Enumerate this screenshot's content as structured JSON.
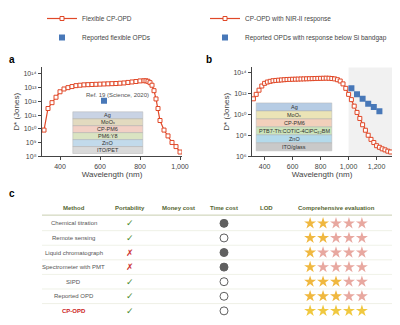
{
  "chart_data": [
    {
      "type": "line",
      "title": "a",
      "x_label": "Wavelength (nm)",
      "y_label": "D* (Jones)",
      "log": "y",
      "xlim": [
        310,
        1010
      ],
      "xticks": [
        400,
        600,
        800,
        {
          "value": 1000,
          "label": "1,000"
        }
      ],
      "ylim": [
        100000000.0,
        300000000000000.0
      ],
      "yticks": [
        {
          "value": 100000000.0,
          "label": "10⁸"
        },
        {
          "value": 1000000000.0,
          "label": "10⁹"
        },
        {
          "value": 10000000000.0,
          "label": "10¹⁰"
        },
        {
          "value": 100000000000.0,
          "label": "10¹¹"
        },
        {
          "value": 1000000000000.0,
          "label": "10¹²"
        },
        {
          "value": 10000000000000.0,
          "label": "10¹³"
        },
        {
          "value": 100000000000000.0,
          "label": "10¹⁴"
        }
      ],
      "grid": false,
      "legend": "upper left",
      "series": [
        {
          "name": "Flexible CP-OPD",
          "type": "line",
          "marker": "square",
          "color": "#e04828",
          "x": [
            320,
            340,
            360,
            380,
            400,
            420,
            440,
            460,
            480,
            500,
            520,
            540,
            560,
            580,
            600,
            620,
            640,
            660,
            680,
            700,
            720,
            740,
            760,
            780,
            800,
            820,
            830,
            840,
            850,
            860,
            870,
            880,
            890,
            900,
            920,
            940,
            960,
            980,
            1000
          ],
          "values": [
            8000000000.0,
            300000000000.0,
            800000000000.0,
            2000000000000.0,
            5000000000000.0,
            8000000000000.0,
            10000000000000.0,
            12000000000000.0,
            14000000000000.0,
            15000000000000.0,
            16000000000000.0,
            16500000000000.0,
            17000000000000.0,
            17500000000000.0,
            18000000000000.0,
            18500000000000.0,
            19000000000000.0,
            19500000000000.0,
            20000000000000.0,
            21000000000000.0,
            22000000000000.0,
            24000000000000.0,
            26000000000000.0,
            28000000000000.0,
            31000000000000.0,
            32000000000000.0,
            31500000000000.0,
            29000000000000.0,
            23000000000000.0,
            15000000000000.0,
            6000000000000.0,
            1500000000000.0,
            300000000000.0,
            40000000000.0,
            8000000000.0,
            3000000000.0,
            1000000000.0,
            500000000.0,
            200000000.0
          ]
        },
        {
          "name": "Reported flexible OPDs",
          "type": "scatter",
          "marker": "square",
          "color": "#4878b8",
          "x": [
            620
          ],
          "values": [
            1100000000000.0
          ]
        }
      ],
      "annotations": [
        {
          "text": "Ref. 19 (Science, 2020)",
          "x": 520,
          "y": 1300000000000.0
        }
      ],
      "layers": [
        {
          "text": "Ag",
          "color": "#c0cce0"
        },
        {
          "text": "MoOₓ",
          "color": "#ddd4b4"
        },
        {
          "text": "CP-PM6",
          "color": "#f0c8bc"
        },
        {
          "text": "PM6:Y8",
          "color": "#d4e0b8"
        },
        {
          "text": "ZnO",
          "color": "#b8d4e8"
        },
        {
          "text": "ITO/PET",
          "color": "#d4d4d4"
        }
      ]
    },
    {
      "type": "line",
      "title": "b",
      "x_label": "Wavelength (nm)",
      "y_label": "D* (Jones)",
      "log": "y",
      "xlim": [
        310,
        1310
      ],
      "xticks": [
        400,
        600,
        800,
        {
          "value": 1000,
          "label": "1,000"
        },
        {
          "value": 1200,
          "label": "1,200"
        }
      ],
      "ylim": [
        1000000.0,
        300000000000000.0
      ],
      "yticks": [
        {
          "value": 1000000.0,
          "label": "10⁶"
        },
        {
          "value": 100000000.0,
          "label": "10⁸"
        },
        {
          "value": 10000000000.0,
          "label": "10¹⁰"
        },
        {
          "value": 1000000000000.0,
          "label": "10¹²"
        },
        {
          "value": 100000000000000.0,
          "label": "10¹⁴"
        }
      ],
      "grid": false,
      "legend": "upper right",
      "shaded_x": [
        1000,
        1310
      ],
      "series": [
        {
          "name": "CP-OPD with NIR-II response",
          "type": "line",
          "marker": "square",
          "color": "#e04828",
          "x": [
            320,
            340,
            360,
            380,
            400,
            420,
            440,
            460,
            480,
            500,
            520,
            540,
            560,
            580,
            600,
            620,
            640,
            660,
            680,
            700,
            720,
            740,
            760,
            780,
            800,
            820,
            840,
            860,
            880,
            900,
            920,
            940,
            960,
            980,
            1000,
            1020,
            1040,
            1060,
            1080,
            1100,
            1120,
            1140,
            1160,
            1180,
            1200,
            1220,
            1240,
            1260,
            1280,
            1300
          ],
          "values": [
            300000000000.0,
            800000000000.0,
            2000000000000.0,
            5000000000000.0,
            9000000000000.0,
            12000000000000.0,
            14000000000000.0,
            16000000000000.0,
            17000000000000.0,
            18000000000000.0,
            19000000000000.0,
            20000000000000.0,
            21000000000000.0,
            21500000000000.0,
            22000000000000.0,
            22500000000000.0,
            23000000000000.0,
            23500000000000.0,
            24000000000000.0,
            24500000000000.0,
            25000000000000.0,
            25500000000000.0,
            26000000000000.0,
            26500000000000.0,
            27000000000000.0,
            27500000000000.0,
            28000000000000.0,
            27500000000000.0,
            26000000000000.0,
            24000000000000.0,
            20000000000000.0,
            15000000000000.0,
            8000000000000.0,
            3000000000000.0,
            800000000000.0,
            250000000000.0,
            60000000000.0,
            15000000000.0,
            4000000000.0,
            1000000000.0,
            300000000.0,
            100000000.0,
            40000000.0,
            20000000.0,
            10000000.0,
            7000000.0,
            5000000.0,
            4000000.0,
            3000000.0,
            2500000.0
          ]
        },
        {
          "name": "Reported OPDs with response below Si bandgap",
          "type": "scatter",
          "marker": "square",
          "color": "#4878b8",
          "x": [
            1020,
            1060,
            1100,
            1140,
            1180,
            1220
          ],
          "values": [
            3000000000000.0,
            800000000000.0,
            300000000000.0,
            100000000000.0,
            50000000000.0,
            20000000000.0
          ]
        }
      ],
      "layers": [
        {
          "text": "Ag",
          "color": "#aac4e0"
        },
        {
          "text": "MoOₓ",
          "color": "#e8e0aa"
        },
        {
          "text": "CP-PM6",
          "color": "#f0c8b0"
        },
        {
          "text": "PTB7-Th:COTIC-4ClPC₈₂BM",
          "color": "#c4e0b0"
        },
        {
          "text": "ZnO",
          "color": "#a8d4e8"
        },
        {
          "text": "ITO/glass",
          "color": "#c0c0c0"
        }
      ]
    },
    {
      "type": "table",
      "title": "c",
      "columns": [
        "Method",
        "Portability",
        "Money cost",
        "Time cost",
        "LOD",
        "Comprehensive evaluation"
      ],
      "check_mark": "✓",
      "cross_mark": "✗",
      "check_color": "#4a8a30",
      "cross_color": "#cc3333",
      "highlight_color": "#cc2222",
      "star_color": "#f0b840",
      "star_empty_color": "#e8a8a0",
      "highlight_star_color": "#f0c840",
      "rows": [
        {
          "method": "Chemical titration",
          "portable": true,
          "time_big": true,
          "stars": 2,
          "highlight": false
        },
        {
          "method": "Remote sensing",
          "portable": true,
          "time_big": false,
          "stars": 2,
          "highlight": false
        },
        {
          "method": "Liquid chromatograph",
          "portable": false,
          "time_big": true,
          "stars": 1,
          "highlight": false
        },
        {
          "method": "Spectrometer with PMT",
          "portable": false,
          "time_big": true,
          "stars": 1,
          "highlight": false
        },
        {
          "method": "SIPD",
          "portable": true,
          "time_big": false,
          "stars": 3,
          "highlight": false
        },
        {
          "method": "Reported OPD",
          "portable": true,
          "time_big": false,
          "stars": 3,
          "highlight": false
        },
        {
          "method": "CP-OPD",
          "portable": true,
          "time_big": false,
          "stars": 5,
          "highlight": true
        }
      ]
    }
  ]
}
